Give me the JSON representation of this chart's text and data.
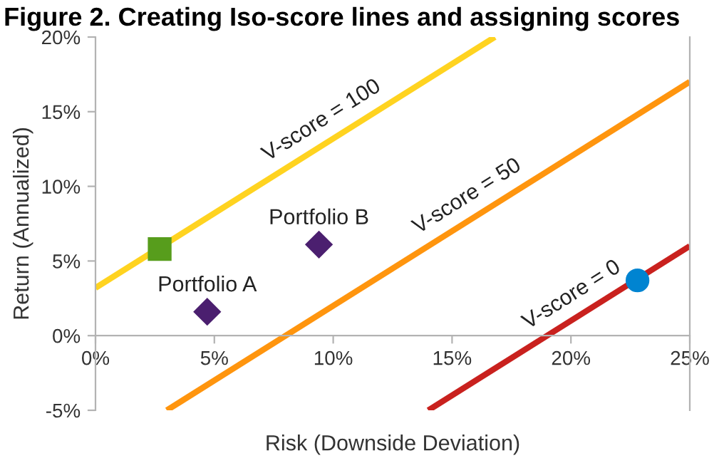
{
  "chart_data": {
    "type": "line",
    "title": "Figure 2. Creating Iso-score lines and assigning scores",
    "xlabel": "Risk (Downside Deviation)",
    "ylabel": "Return (Annualized)",
    "xlim": [
      0,
      25
    ],
    "ylim": [
      -5,
      20
    ],
    "xticks": [
      {
        "value": 0,
        "label": "0%"
      },
      {
        "value": 5,
        "label": "5%"
      },
      {
        "value": 10,
        "label": "10%"
      },
      {
        "value": 15,
        "label": "15%"
      },
      {
        "value": 20,
        "label": "20%"
      },
      {
        "value": 25,
        "label": "25%"
      }
    ],
    "yticks": [
      {
        "value": -5,
        "label": "-5%"
      },
      {
        "value": 0,
        "label": "0%"
      },
      {
        "value": 5,
        "label": "5%"
      },
      {
        "value": 10,
        "label": "10%"
      },
      {
        "value": 15,
        "label": "15%"
      },
      {
        "value": 20,
        "label": "20%"
      }
    ],
    "grid": false,
    "legend": false,
    "series": [
      {
        "name": "V-score = 100",
        "color": "#ffd320",
        "x": [
          0,
          16.8
        ],
        "values": [
          3.2,
          20
        ]
      },
      {
        "name": "V-score = 50",
        "color": "#ff950e",
        "x": [
          3,
          25
        ],
        "values": [
          -5,
          17
        ]
      },
      {
        "name": "V-score = 0",
        "color": "#c9211e",
        "x": [
          14,
          25
        ],
        "values": [
          -5,
          6
        ]
      },
      {
        "type": "scatter",
        "marker": "square",
        "color": "#579d1c",
        "x": [
          2.7
        ],
        "values": [
          5.8
        ]
      },
      {
        "name": "Portfolio A",
        "type": "scatter",
        "marker": "diamond",
        "color": "#4b1f6f",
        "x": [
          4.7
        ],
        "values": [
          1.6
        ]
      },
      {
        "name": "Portfolio B",
        "type": "scatter",
        "marker": "diamond",
        "color": "#4b1f6f",
        "x": [
          9.4
        ],
        "values": [
          6.1
        ]
      },
      {
        "type": "scatter",
        "marker": "circle",
        "color": "#0084d1",
        "x": [
          22.8
        ],
        "values": [
          3.7
        ]
      }
    ]
  }
}
